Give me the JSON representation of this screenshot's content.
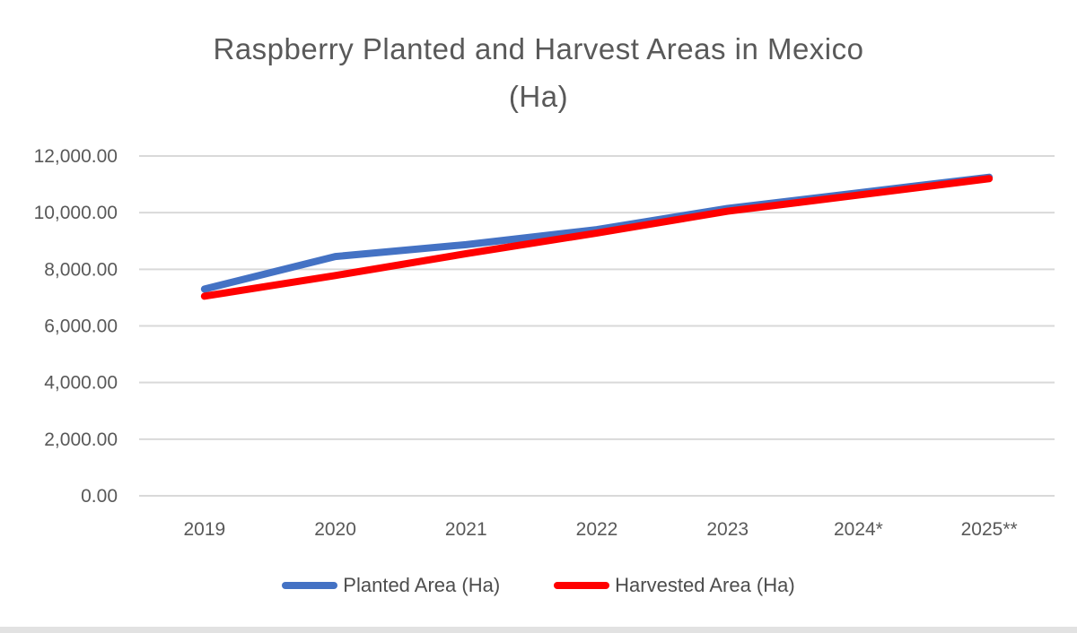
{
  "chart_data": {
    "type": "line",
    "title": "Raspberry Planted and Harvest Areas in Mexico (Ha)",
    "title_lines": [
      "Raspberry Planted and Harvest Areas in Mexico",
      "(Ha)"
    ],
    "categories": [
      "2019",
      "2020",
      "2021",
      "2022",
      "2023",
      "2024*",
      "2025**"
    ],
    "series": [
      {
        "name": "Planted Area (Ha)",
        "color": "#4472C4",
        "stroke_width": 8,
        "values": [
          7300,
          8450,
          8870,
          9400,
          10150,
          10700,
          11250
        ]
      },
      {
        "name": "Harvested Area (Ha)",
        "color": "#FF0000",
        "stroke_width": 8,
        "values": [
          7050,
          7780,
          8550,
          9280,
          10050,
          10620,
          11200
        ]
      }
    ],
    "ylabel": "",
    "xlabel": "",
    "ylim": [
      0,
      12000
    ],
    "ytick_step": 2000,
    "ytick_labels": [
      "0.00",
      "2,000.00",
      "4,000.00",
      "6,000.00",
      "8,000.00",
      "10,000.00",
      "12,000.00"
    ],
    "grid": true,
    "gridline_color": "#d9d9d9",
    "legend_position": "bottom",
    "text_color": "#595959"
  }
}
